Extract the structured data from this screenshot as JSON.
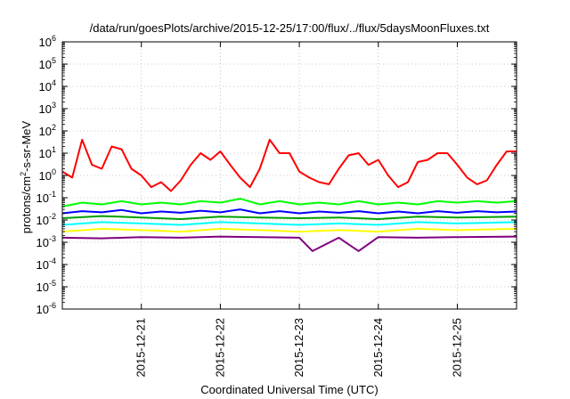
{
  "chart_data": {
    "type": "line",
    "title": "/data/run/goesPlots/archive/2015-12-25/17:00/flux/../flux/5daysMoonFluxes.txt",
    "xlabel": "Coordinated Universal Time (UTC)",
    "ylabel_parts": {
      "pre": "protons/cm",
      "sup": "2",
      "post": "-s-sr-MeV"
    },
    "yscale": "log",
    "ylim": [
      1e-06,
      1000000.0
    ],
    "xlim": [
      "2015-12-20 00:00",
      "2015-12-25 18:00"
    ],
    "grid": true,
    "x_ticks": [
      "2015-12-21",
      "2015-12-22",
      "2015-12-23",
      "2015-12-24",
      "2015-12-25"
    ],
    "y_ticks": [
      {
        "value": 1e-06,
        "base": "10",
        "exp": "-6"
      },
      {
        "value": 1e-05,
        "base": "10",
        "exp": "-5"
      },
      {
        "value": 0.0001,
        "base": "10",
        "exp": "-4"
      },
      {
        "value": 0.001,
        "base": "10",
        "exp": "-3"
      },
      {
        "value": 0.01,
        "base": "10",
        "exp": "-2"
      },
      {
        "value": 0.1,
        "base": "10",
        "exp": "-1"
      },
      {
        "value": 1,
        "base": "10",
        "exp": "0"
      },
      {
        "value": 10.0,
        "base": "10",
        "exp": "1"
      },
      {
        "value": 100.0,
        "base": "10",
        "exp": "2"
      },
      {
        "value": 1000.0,
        "base": "10",
        "exp": "3"
      },
      {
        "value": 10000.0,
        "base": "10",
        "exp": "4"
      },
      {
        "value": 100000.0,
        "base": "10",
        "exp": "5"
      },
      {
        "value": 1000000.0,
        "base": "10",
        "exp": "6"
      }
    ],
    "series": [
      {
        "color": "#800080",
        "x": [
          "2015-12-20 00:00",
          "2015-12-20 12:00",
          "2015-12-21 00:00",
          "2015-12-21 12:00",
          "2015-12-22 00:00",
          "2015-12-22 12:00",
          "2015-12-23 00:00",
          "2015-12-23 04:00",
          "2015-12-23 12:00",
          "2015-12-23 18:00",
          "2015-12-24 00:00",
          "2015-12-24 12:00",
          "2015-12-25 00:00",
          "2015-12-25 18:00"
        ],
        "y": [
          0.0016,
          0.0015,
          0.0017,
          0.0016,
          0.0018,
          0.0017,
          0.0016,
          0.0004,
          0.0016,
          0.0004,
          0.0017,
          0.0016,
          0.0017,
          0.0018
        ]
      },
      {
        "color": "#ffff00",
        "x": [
          "2015-12-20 00:00",
          "2015-12-20 12:00",
          "2015-12-21 00:00",
          "2015-12-21 12:00",
          "2015-12-22 00:00",
          "2015-12-22 12:00",
          "2015-12-23 00:00",
          "2015-12-23 12:00",
          "2015-12-24 00:00",
          "2015-12-24 12:00",
          "2015-12-25 00:00",
          "2015-12-25 18:00"
        ],
        "y": [
          0.003,
          0.004,
          0.0035,
          0.003,
          0.004,
          0.0035,
          0.003,
          0.0035,
          0.003,
          0.004,
          0.0035,
          0.004
        ]
      },
      {
        "color": "#00ffff",
        "x": [
          "2015-12-20 00:00",
          "2015-12-20 12:00",
          "2015-12-21 00:00",
          "2015-12-21 12:00",
          "2015-12-22 00:00",
          "2015-12-22 12:00",
          "2015-12-23 00:00",
          "2015-12-23 12:00",
          "2015-12-24 00:00",
          "2015-12-24 12:00",
          "2015-12-25 00:00",
          "2015-12-25 18:00"
        ],
        "y": [
          0.006,
          0.008,
          0.007,
          0.006,
          0.008,
          0.007,
          0.006,
          0.007,
          0.006,
          0.008,
          0.007,
          0.008
        ]
      },
      {
        "color": "#00a000",
        "x": [
          "2015-12-20 00:00",
          "2015-12-20 12:00",
          "2015-12-21 00:00",
          "2015-12-21 12:00",
          "2015-12-22 00:00",
          "2015-12-22 12:00",
          "2015-12-23 00:00",
          "2015-12-23 12:00",
          "2015-12-24 00:00",
          "2015-12-24 12:00",
          "2015-12-25 00:00",
          "2015-12-25 18:00"
        ],
        "y": [
          0.012,
          0.015,
          0.013,
          0.011,
          0.014,
          0.013,
          0.012,
          0.013,
          0.011,
          0.014,
          0.013,
          0.014
        ]
      },
      {
        "color": "#00ff00",
        "x": [
          "2015-12-20 00:00",
          "2015-12-20 06:00",
          "2015-12-20 12:00",
          "2015-12-20 18:00",
          "2015-12-21 00:00",
          "2015-12-21 06:00",
          "2015-12-21 12:00",
          "2015-12-21 18:00",
          "2015-12-22 00:00",
          "2015-12-22 06:00",
          "2015-12-22 12:00",
          "2015-12-22 18:00",
          "2015-12-23 00:00",
          "2015-12-23 06:00",
          "2015-12-23 12:00",
          "2015-12-23 18:00",
          "2015-12-24 00:00",
          "2015-12-24 06:00",
          "2015-12-24 12:00",
          "2015-12-24 18:00",
          "2015-12-25 00:00",
          "2015-12-25 06:00",
          "2015-12-25 12:00",
          "2015-12-25 18:00"
        ],
        "y": [
          0.04,
          0.06,
          0.05,
          0.07,
          0.05,
          0.06,
          0.05,
          0.07,
          0.06,
          0.09,
          0.05,
          0.07,
          0.05,
          0.06,
          0.05,
          0.07,
          0.05,
          0.06,
          0.05,
          0.07,
          0.06,
          0.07,
          0.06,
          0.07
        ]
      },
      {
        "color": "#0000ff",
        "x": [
          "2015-12-20 00:00",
          "2015-12-20 06:00",
          "2015-12-20 12:00",
          "2015-12-20 18:00",
          "2015-12-21 00:00",
          "2015-12-21 06:00",
          "2015-12-21 12:00",
          "2015-12-21 18:00",
          "2015-12-22 00:00",
          "2015-12-22 06:00",
          "2015-12-22 12:00",
          "2015-12-22 18:00",
          "2015-12-23 00:00",
          "2015-12-23 06:00",
          "2015-12-23 12:00",
          "2015-12-23 18:00",
          "2015-12-24 00:00",
          "2015-12-24 06:00",
          "2015-12-24 12:00",
          "2015-12-24 18:00",
          "2015-12-25 00:00",
          "2015-12-25 06:00",
          "2015-12-25 12:00",
          "2015-12-25 18:00"
        ],
        "y": [
          0.02,
          0.025,
          0.022,
          0.028,
          0.02,
          0.024,
          0.021,
          0.026,
          0.022,
          0.03,
          0.02,
          0.025,
          0.02,
          0.024,
          0.021,
          0.025,
          0.02,
          0.024,
          0.02,
          0.025,
          0.021,
          0.025,
          0.022,
          0.024
        ]
      },
      {
        "color": "#ff0000",
        "x": [
          "2015-12-20 00:00",
          "2015-12-20 03:00",
          "2015-12-20 06:00",
          "2015-12-20 09:00",
          "2015-12-20 12:00",
          "2015-12-20 15:00",
          "2015-12-20 18:00",
          "2015-12-20 21:00",
          "2015-12-21 00:00",
          "2015-12-21 03:00",
          "2015-12-21 06:00",
          "2015-12-21 09:00",
          "2015-12-21 12:00",
          "2015-12-21 15:00",
          "2015-12-21 18:00",
          "2015-12-21 21:00",
          "2015-12-22 00:00",
          "2015-12-22 03:00",
          "2015-12-22 06:00",
          "2015-12-22 09:00",
          "2015-12-22 12:00",
          "2015-12-22 15:00",
          "2015-12-22 18:00",
          "2015-12-22 21:00",
          "2015-12-23 00:00",
          "2015-12-23 03:00",
          "2015-12-23 06:00",
          "2015-12-23 09:00",
          "2015-12-23 12:00",
          "2015-12-23 15:00",
          "2015-12-23 18:00",
          "2015-12-23 21:00",
          "2015-12-24 00:00",
          "2015-12-24 03:00",
          "2015-12-24 06:00",
          "2015-12-24 09:00",
          "2015-12-24 12:00",
          "2015-12-24 15:00",
          "2015-12-24 18:00",
          "2015-12-24 21:00",
          "2015-12-25 00:00",
          "2015-12-25 03:00",
          "2015-12-25 06:00",
          "2015-12-25 09:00",
          "2015-12-25 12:00",
          "2015-12-25 15:00",
          "2015-12-25 18:00"
        ],
        "y": [
          1.5,
          0.8,
          40,
          3,
          2,
          20,
          15,
          2,
          1,
          0.3,
          0.5,
          0.2,
          0.6,
          3,
          10,
          5,
          12,
          3,
          0.8,
          0.3,
          2,
          40,
          10,
          10,
          1.5,
          0.8,
          0.5,
          0.4,
          2,
          8,
          10,
          3,
          5,
          1,
          0.3,
          0.5,
          4,
          5,
          10,
          10,
          3,
          0.8,
          0.4,
          0.6,
          3,
          12,
          12
        ]
      }
    ]
  }
}
